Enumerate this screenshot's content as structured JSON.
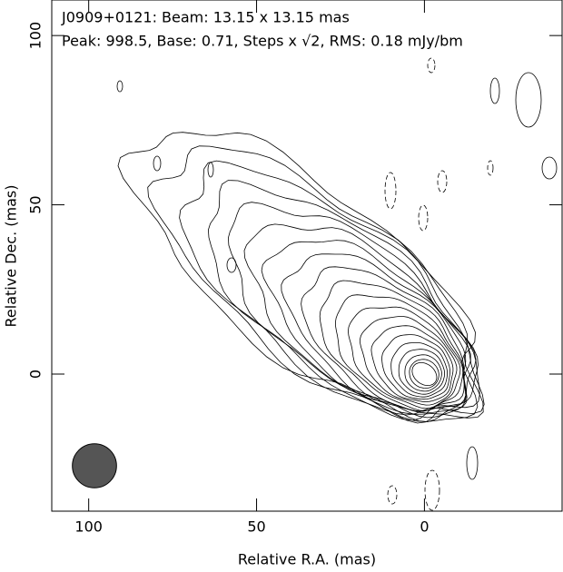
{
  "chart_data": {
    "type": "contour",
    "title_lines": [
      "J0909+0121: Beam: 13.15 x 13.15 mas",
      "Peak: 998.5, Base: 0.71, Steps x √2, RMS: 0.18 mJy/bm"
    ],
    "x_label": "Relative R.A. (mas)",
    "y_label": "Relative Dec. (mas)",
    "xlim": [
      111,
      -41
    ],
    "ylim": [
      -40.5,
      110.5
    ],
    "xticks": [
      100,
      50,
      0
    ],
    "yticks": [
      0,
      50,
      100
    ],
    "beam_mas": 13.15,
    "beam_color": "#555555"
  }
}
